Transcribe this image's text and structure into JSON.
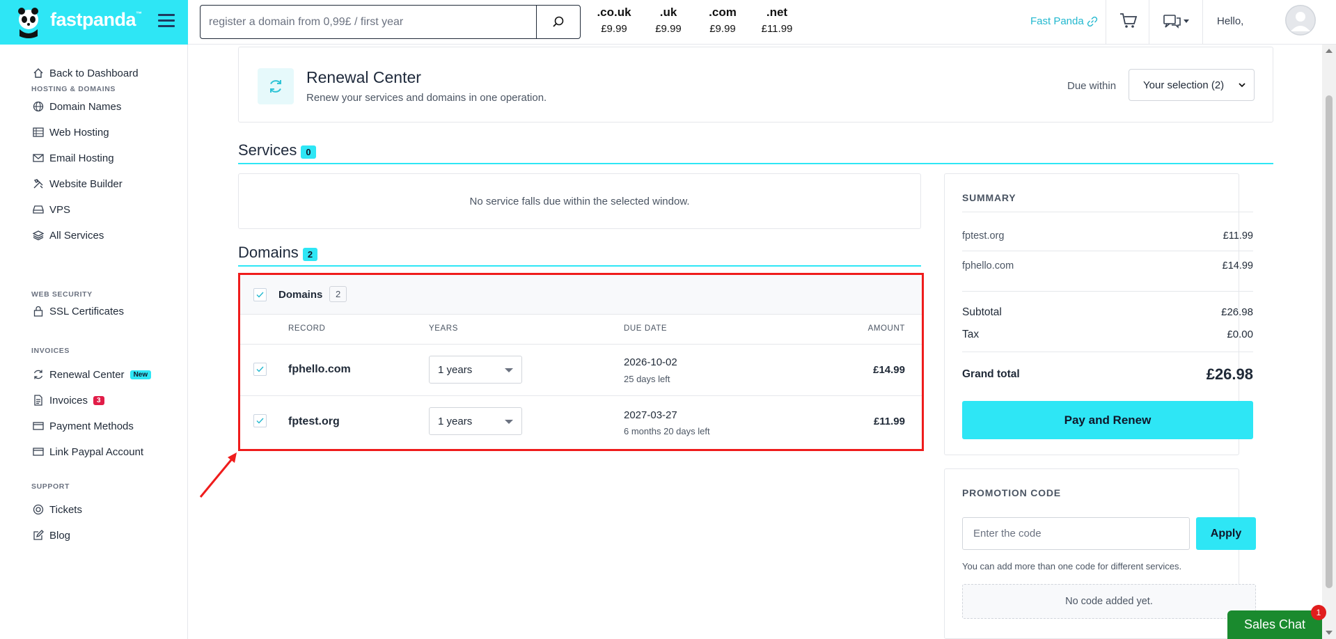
{
  "brand": {
    "name": "fastpanda",
    "tm": "™"
  },
  "search": {
    "placeholder": "register a domain from 0,99£ / first year"
  },
  "tlds": [
    {
      "ext": ".co.uk",
      "price": "£9.99"
    },
    {
      "ext": ".uk",
      "price": "£9.99"
    },
    {
      "ext": ".com",
      "price": "£9.99"
    },
    {
      "ext": ".net",
      "price": "£11.99"
    }
  ],
  "header": {
    "account_link": "Fast Panda",
    "greeting": "Hello,"
  },
  "sidebar": {
    "back": "Back to Dashboard",
    "hosting_heading": "HOSTING & DOMAINS",
    "hosting": [
      "Domain Names",
      "Web Hosting",
      "Email Hosting",
      "Website Builder",
      "VPS",
      "All Services"
    ],
    "security_heading": "WEB SECURITY",
    "security": [
      "SSL Certificates"
    ],
    "invoices_heading": "INVOICES",
    "invoices": [
      "Renewal Center",
      "Invoices",
      "Payment Methods",
      "Link Paypal Account"
    ],
    "renewal_badge": "New",
    "invoices_badge": "3",
    "support_heading": "SUPPORT",
    "support": [
      "Tickets",
      "Blog"
    ]
  },
  "renewal": {
    "title": "Renewal Center",
    "subtitle": "Renew your services and domains in one operation.",
    "due_label": "Due within",
    "due_value": "Your selection (2)"
  },
  "services": {
    "title": "Services",
    "count": "0",
    "empty": "No service falls due within the selected window."
  },
  "domains": {
    "title": "Domains",
    "count": "2",
    "box_label": "Domains",
    "box_count": "2",
    "columns": {
      "record": "RECORD",
      "years": "YEARS",
      "due": "DUE DATE",
      "amount": "AMOUNT"
    },
    "rows": [
      {
        "record": "fphello.com",
        "years": "1 years",
        "due": "2026-10-02",
        "left": "25 days left",
        "amount": "£14.99",
        "checked": true
      },
      {
        "record": "fptest.org",
        "years": "1 years",
        "due": "2027-03-27",
        "left": "6 months 20 days left",
        "amount": "£11.99",
        "checked": true
      }
    ]
  },
  "summary": {
    "heading": "SUMMARY",
    "items": [
      {
        "name": "fptest.org",
        "price": "£11.99"
      },
      {
        "name": "fphello.com",
        "price": "£14.99"
      }
    ],
    "subtotal_label": "Subtotal",
    "subtotal": "£26.98",
    "tax_label": "Tax",
    "tax": "£0.00",
    "total_label": "Grand total",
    "total": "£26.98",
    "pay_label": "Pay and Renew"
  },
  "promo": {
    "heading": "PROMOTION CODE",
    "placeholder": "Enter the code",
    "apply_label": "Apply",
    "note": "You can add more than one code for different services.",
    "empty": "No code added yet."
  },
  "chat": {
    "label": "Sales Chat",
    "badge": "1"
  },
  "colors": {
    "accent": "#2ee6f5",
    "highlight": "#ef1c1c",
    "chat": "#1a8a2e"
  }
}
